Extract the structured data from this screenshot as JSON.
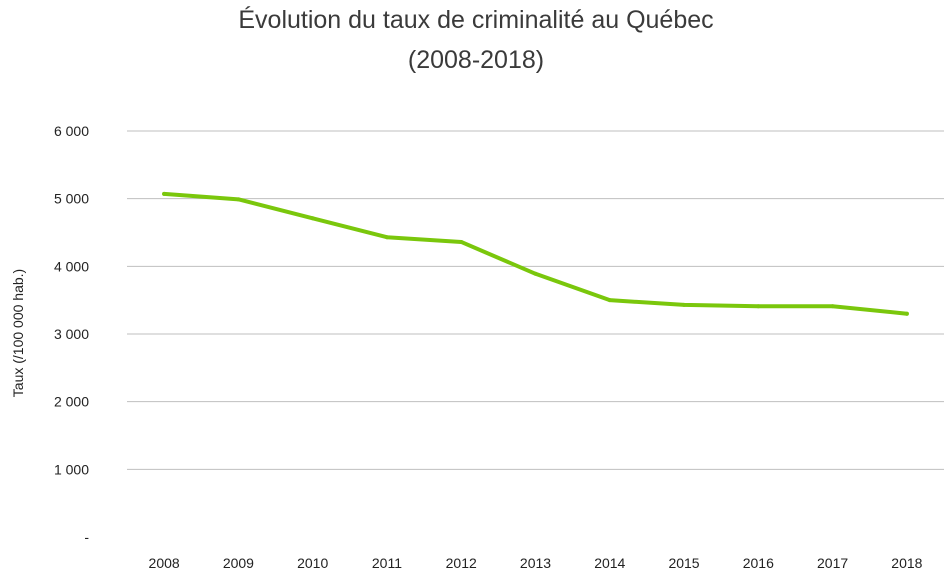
{
  "chart_data": {
    "type": "line",
    "title": "Évolution du taux de criminalité au Québec",
    "subtitle": "(2008-2018)",
    "xlabel": "",
    "ylabel": "Taux (/100 000 hab.)",
    "ylim": [
      0,
      6000
    ],
    "y_tick_values": [
      0,
      1000,
      2000,
      3000,
      4000,
      5000,
      6000
    ],
    "y_tick_labels": [
      "-",
      "1 000",
      "2 000",
      "3 000",
      "4 000",
      "5 000",
      "6 000"
    ],
    "grid": true,
    "legend": "none",
    "categories": [
      "2008",
      "2009",
      "2010",
      "2011",
      "2012",
      "2013",
      "2014",
      "2015",
      "2016",
      "2017",
      "2018"
    ],
    "series": [
      {
        "name": "Taux de criminalité",
        "color": "#7ac70c",
        "values": [
          5070,
          4990,
          4710,
          4430,
          4360,
          3890,
          3500,
          3430,
          3410,
          3410,
          3300
        ]
      }
    ]
  }
}
